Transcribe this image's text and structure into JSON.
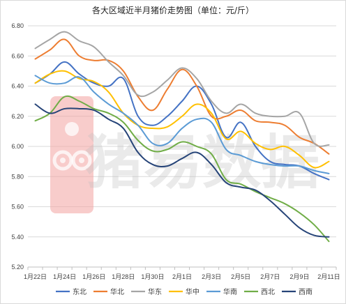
{
  "chart_data": {
    "type": "line",
    "title": "各大区域近半月猪价走势图（单位：元/斤）",
    "xlabel": "",
    "ylabel": "",
    "watermark": "猪易数据",
    "x": [
      "1月22日",
      "1月23日",
      "1月24日",
      "1月25日",
      "1月26日",
      "1月27日",
      "1月28日",
      "1月29日",
      "1月30日",
      "1月31日",
      "2月1日",
      "2月2日",
      "2月3日",
      "2月4日",
      "2月5日",
      "2月6日",
      "2月7日",
      "2月8日",
      "2月9日",
      "2月10日",
      "2月11日"
    ],
    "x_tick_labels": [
      "1月22日",
      "1月24日",
      "1月26日",
      "1月28日",
      "1月30日",
      "2月1日",
      "2月3日",
      "2月5日",
      "2月7日",
      "2月9日",
      "2月11日"
    ],
    "ylim": [
      5.2,
      6.8
    ],
    "y_ticks": [
      "5.20",
      "5.40",
      "5.60",
      "5.80",
      "6.00",
      "6.20",
      "6.40",
      "6.60",
      "6.80"
    ],
    "grid": true,
    "legend_position": "bottom",
    "series": [
      {
        "name": "东北",
        "color": "#4472c4",
        "values": [
          6.42,
          6.48,
          6.56,
          6.48,
          6.42,
          6.4,
          6.45,
          6.2,
          6.14,
          6.2,
          6.3,
          6.4,
          6.28,
          6.06,
          6.16,
          6.0,
          5.9,
          5.88,
          5.87,
          5.82,
          5.78
        ]
      },
      {
        "name": "华北",
        "color": "#ed7d31",
        "values": [
          6.58,
          6.64,
          6.71,
          6.6,
          6.57,
          6.57,
          6.5,
          6.33,
          6.24,
          6.38,
          6.51,
          6.4,
          6.2,
          6.2,
          6.24,
          6.17,
          6.16,
          6.14,
          6.06,
          6.02,
          5.95
        ]
      },
      {
        "name": "华东",
        "color": "#a5a5a5",
        "values": [
          6.65,
          6.71,
          6.76,
          6.7,
          6.66,
          6.56,
          6.47,
          6.34,
          6.36,
          6.44,
          6.52,
          6.45,
          6.3,
          6.22,
          6.28,
          6.22,
          6.2,
          6.2,
          6.22,
          6.02,
          6.01
        ]
      },
      {
        "name": "华中",
        "color": "#ffc000",
        "values": [
          6.42,
          6.48,
          6.5,
          6.45,
          6.43,
          6.36,
          6.22,
          6.14,
          6.12,
          6.13,
          6.2,
          6.28,
          6.22,
          6.05,
          6.1,
          6.02,
          5.98,
          6.0,
          5.94,
          5.86,
          5.9
        ]
      },
      {
        "name": "华南",
        "color": "#5b9bd5",
        "values": [
          6.47,
          6.42,
          6.42,
          6.46,
          6.36,
          6.28,
          6.22,
          6.14,
          6.02,
          6.02,
          6.12,
          6.18,
          6.16,
          5.98,
          5.94,
          5.9,
          5.88,
          5.87,
          5.87,
          5.84,
          5.82
        ]
      },
      {
        "name": "西北",
        "color": "#70ad47",
        "values": [
          6.17,
          6.22,
          6.33,
          6.3,
          6.25,
          6.22,
          6.16,
          6.04,
          5.97,
          5.98,
          6.03,
          6.0,
          5.95,
          5.78,
          5.75,
          5.7,
          5.66,
          5.62,
          5.56,
          5.48,
          5.37
        ]
      },
      {
        "name": "西南",
        "color": "#264478",
        "values": [
          6.28,
          6.22,
          6.25,
          6.25,
          6.24,
          6.18,
          6.12,
          5.96,
          5.88,
          5.87,
          5.92,
          5.96,
          5.88,
          5.76,
          5.73,
          5.71,
          5.64,
          5.55,
          5.46,
          5.41,
          5.4
        ]
      }
    ]
  }
}
